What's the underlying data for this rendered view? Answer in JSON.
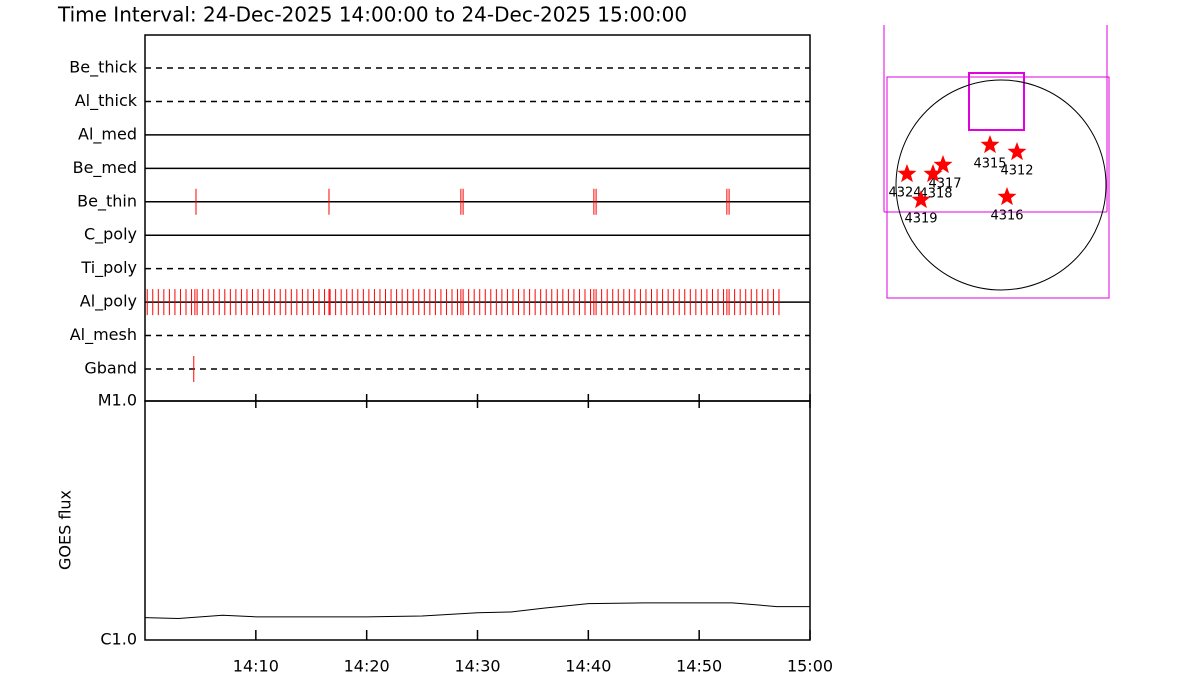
{
  "chart_data": [
    {
      "type": "events",
      "title": "Time Interval: 24-Dec-2025 14:00:00 to 24-Dec-2025 15:00:00",
      "xlim": [
        0,
        60
      ],
      "xticks": [
        {
          "value": 10,
          "label": "14:10"
        },
        {
          "value": 20,
          "label": "14:20"
        },
        {
          "value": 30,
          "label": "14:30"
        },
        {
          "value": 40,
          "label": "14:40"
        },
        {
          "value": 50,
          "label": "14:50"
        },
        {
          "value": 60,
          "label": "15:00"
        }
      ],
      "color": "#ff0000",
      "series": [
        {
          "name": "Be_thick",
          "style": "dashed",
          "x": []
        },
        {
          "name": "Al_thick",
          "style": "dashed",
          "x": []
        },
        {
          "name": "Al_med",
          "style": "solid",
          "x": []
        },
        {
          "name": "Be_med",
          "style": "solid",
          "x": []
        },
        {
          "name": "Be_thin",
          "style": "solid",
          "x": [
            4.6,
            16.6,
            28.5,
            28.7,
            40.5,
            40.7,
            52.5,
            52.7
          ]
        },
        {
          "name": "C_poly",
          "style": "solid",
          "x": []
        },
        {
          "name": "Ti_poly",
          "style": "dashed",
          "x": []
        },
        {
          "name": "Al_poly",
          "style": "solid",
          "x": [
            0.2,
            0.7,
            1.2,
            1.7,
            2.2,
            2.7,
            3.2,
            3.7,
            4.2,
            4.7,
            5.2,
            5.7,
            6.2,
            6.7,
            7.2,
            7.7,
            8.2,
            8.7,
            9.2,
            9.7,
            10.2,
            10.7,
            11.2,
            11.7,
            12.2,
            12.7,
            13.2,
            13.7,
            14.2,
            14.7,
            15.2,
            15.7,
            16.2,
            16.7,
            17.2,
            17.7,
            18.2,
            18.7,
            19.2,
            19.7,
            20.2,
            20.7,
            21.2,
            21.7,
            22.2,
            22.7,
            23.2,
            23.7,
            24.2,
            24.7,
            25.2,
            25.7,
            26.2,
            26.7,
            27.2,
            27.7,
            28.2,
            28.7,
            29.2,
            29.7,
            30.2,
            30.7,
            31.2,
            31.7,
            32.2,
            32.7,
            33.2,
            33.7,
            34.2,
            34.7,
            35.2,
            35.7,
            36.2,
            36.7,
            37.2,
            37.7,
            38.2,
            38.7,
            39.2,
            39.7,
            40.2,
            40.7,
            41.2,
            41.7,
            42.2,
            42.7,
            43.2,
            43.7,
            44.2,
            44.7,
            45.2,
            45.7,
            46.2,
            46.7,
            47.2,
            47.7,
            48.2,
            48.7,
            49.2,
            49.7,
            50.2,
            50.7,
            51.2,
            51.7,
            52.2,
            52.7,
            53.2,
            53.7,
            54.2,
            54.7,
            55.2,
            55.7,
            56.2,
            56.7,
            57.2,
            4.5,
            16.6,
            28.5,
            40.5,
            52.5
          ]
        },
        {
          "name": "Al_mesh",
          "style": "dashed",
          "x": []
        },
        {
          "name": "Gband",
          "style": "dashed",
          "x": [
            4.4
          ]
        }
      ]
    },
    {
      "type": "line",
      "ylabel": "GOES flux",
      "log_scale": true,
      "xlim": [
        0,
        60
      ],
      "ylim": [
        1e-06,
        1e-05
      ],
      "yticks": [
        {
          "value": 1e-06,
          "label": "C1.0"
        },
        {
          "value": 1e-05,
          "label": "M1.0"
        }
      ],
      "color": "#000000",
      "x": [
        0,
        3,
        7,
        10,
        15,
        20,
        25,
        30,
        33,
        36,
        40,
        45,
        50,
        53,
        57,
        60
      ],
      "values": [
        1.24e-06,
        1.23e-06,
        1.27e-06,
        1.25e-06,
        1.25e-06,
        1.25e-06,
        1.26e-06,
        1.3e-06,
        1.31e-06,
        1.36e-06,
        1.42e-06,
        1.43e-06,
        1.43e-06,
        1.43e-06,
        1.38e-06,
        1.38e-06
      ]
    },
    {
      "type": "map",
      "color": "#ff0000",
      "regions": [
        "4315",
        "4312",
        "4317",
        "4318",
        "4324",
        "4319",
        "4316"
      ]
    }
  ]
}
